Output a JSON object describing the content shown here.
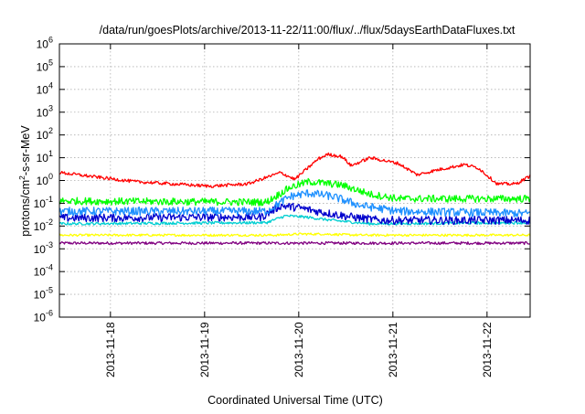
{
  "chart_data": {
    "type": "line",
    "title": "/data/run/goesPlots/archive/2013-11-22/11:00/flux/../flux/5daysEarthDataFluxes.txt",
    "xlabel": "Coordinated Universal Time (UTC)",
    "ylabel": "protons/cm²-s-sr-MeV",
    "ylabel_parts": {
      "base": "protons/cm",
      "sup": "2",
      "rest": "-s-sr-MeV"
    },
    "x_range_days": [
      0,
      5
    ],
    "x_start_date": "2013-11-17T11:00",
    "x_ticks": [
      {
        "label": "2013-11-18",
        "day": 0.542
      },
      {
        "label": "2013-11-19",
        "day": 1.542
      },
      {
        "label": "2013-11-20",
        "day": 2.542
      },
      {
        "label": "2013-11-21",
        "day": 3.542
      },
      {
        "label": "2013-11-22",
        "day": 4.542
      }
    ],
    "y_scale": "log",
    "ylim_exp": [
      -6,
      6
    ],
    "y_ticks": [
      {
        "base": "10",
        "exp": "6"
      },
      {
        "base": "10",
        "exp": "5"
      },
      {
        "base": "10",
        "exp": "4"
      },
      {
        "base": "10",
        "exp": "3"
      },
      {
        "base": "10",
        "exp": "2"
      },
      {
        "base": "10",
        "exp": "1"
      },
      {
        "base": "10",
        "exp": "0"
      },
      {
        "base": "10",
        "exp": "-1"
      },
      {
        "base": "10",
        "exp": "-2"
      },
      {
        "base": "10",
        "exp": "-3"
      },
      {
        "base": "10",
        "exp": "-4"
      },
      {
        "base": "10",
        "exp": "-5"
      },
      {
        "base": "10",
        "exp": "-6"
      }
    ],
    "grid": true,
    "series": [
      {
        "color": "#800080",
        "noise": 0.06,
        "points": [
          [
            0,
            -2.75
          ],
          [
            5,
            -2.75
          ]
        ]
      },
      {
        "color": "#ffff00",
        "noise": 0.05,
        "points": [
          [
            0,
            -2.4
          ],
          [
            2.3,
            -2.4
          ],
          [
            2.55,
            -2.35
          ],
          [
            2.8,
            -2.35
          ],
          [
            3.2,
            -2.4
          ],
          [
            5,
            -2.4
          ]
        ]
      },
      {
        "color": "#00ced1",
        "noise": 0.06,
        "points": [
          [
            0,
            -1.9
          ],
          [
            2.2,
            -1.85
          ],
          [
            2.4,
            -1.55
          ],
          [
            2.6,
            -1.6
          ],
          [
            2.9,
            -1.75
          ],
          [
            3.3,
            -1.9
          ],
          [
            5,
            -1.85
          ]
        ]
      },
      {
        "color": "#0000cd",
        "noise": 0.18,
        "points": [
          [
            0,
            -1.65
          ],
          [
            2.15,
            -1.6
          ],
          [
            2.35,
            -1.1
          ],
          [
            2.55,
            -1.2
          ],
          [
            2.8,
            -1.4
          ],
          [
            3.1,
            -1.6
          ],
          [
            3.4,
            -1.75
          ],
          [
            5,
            -1.75
          ]
        ]
      },
      {
        "color": "#1e90ff",
        "noise": 0.18,
        "points": [
          [
            0,
            -1.35
          ],
          [
            2.2,
            -1.35
          ],
          [
            2.45,
            -0.7
          ],
          [
            2.65,
            -0.55
          ],
          [
            2.9,
            -0.7
          ],
          [
            3.2,
            -1.1
          ],
          [
            3.6,
            -1.35
          ],
          [
            5,
            -1.45
          ]
        ]
      },
      {
        "color": "#00ff00",
        "noise": 0.16,
        "points": [
          [
            0,
            -0.9
          ],
          [
            2.2,
            -0.95
          ],
          [
            2.45,
            -0.3
          ],
          [
            2.65,
            -0.05
          ],
          [
            3.0,
            -0.2
          ],
          [
            3.3,
            -0.6
          ],
          [
            3.6,
            -0.8
          ],
          [
            5,
            -0.8
          ]
        ]
      },
      {
        "color": "#ff0000",
        "noise": 0.07,
        "points": [
          [
            0,
            0.35
          ],
          [
            0.4,
            0.15
          ],
          [
            0.8,
            -0.05
          ],
          [
            1.2,
            -0.15
          ],
          [
            1.6,
            -0.25
          ],
          [
            2.0,
            -0.15
          ],
          [
            2.35,
            0.35
          ],
          [
            2.5,
            0.05
          ],
          [
            2.75,
            0.95
          ],
          [
            2.85,
            1.15
          ],
          [
            3.0,
            1.05
          ],
          [
            3.1,
            0.65
          ],
          [
            3.3,
            1.0
          ],
          [
            3.6,
            0.75
          ],
          [
            3.8,
            0.25
          ],
          [
            4.0,
            0.45
          ],
          [
            4.3,
            0.7
          ],
          [
            4.45,
            0.55
          ],
          [
            4.65,
            -0.15
          ],
          [
            4.85,
            -0.15
          ],
          [
            5,
            0.2
          ]
        ]
      }
    ]
  }
}
